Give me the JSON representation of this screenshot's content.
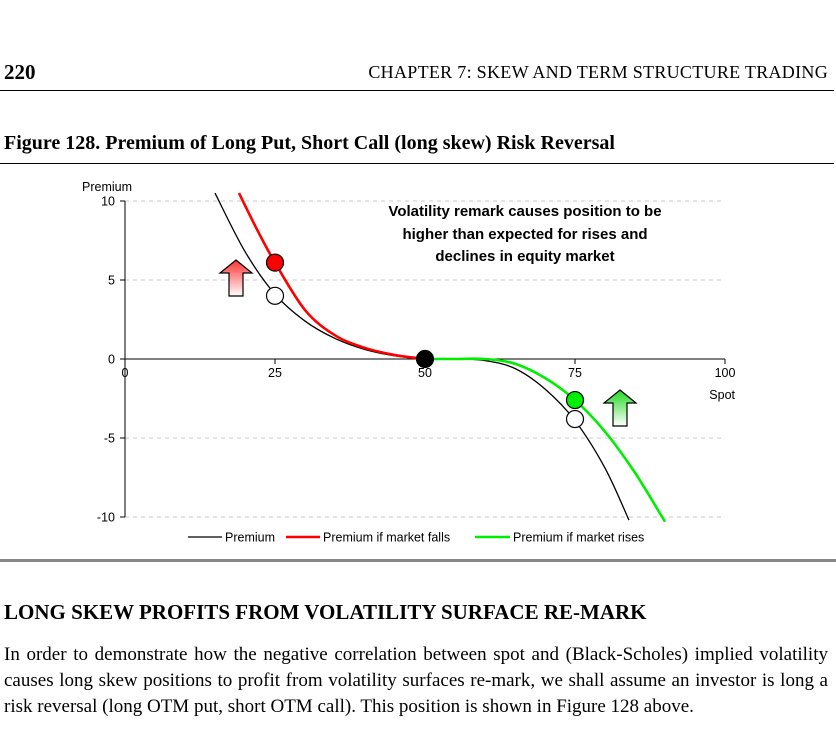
{
  "header": {
    "page_number": "220",
    "chapter_title": "CHAPTER 7: SKEW AND TERM STRUCTURE TRADING"
  },
  "figure": {
    "caption": "Figure 128. Premium of Long Put, Short Call (long skew) Risk Reversal"
  },
  "chart_data": {
    "type": "line",
    "title": "",
    "xlabel": "Spot",
    "ylabel": "Premium",
    "xlim": [
      0,
      100
    ],
    "ylim": [
      -10,
      10
    ],
    "x_ticks": [
      "0",
      "25",
      "50",
      "75",
      "100"
    ],
    "y_ticks": [
      "10",
      "5",
      "0",
      "-5",
      "-10"
    ],
    "grid": "dashed horizontal",
    "legend_position": "bottom",
    "annotation": {
      "lines": [
        "Volatility remark causes position to be",
        "higher than expected for rises and",
        "declines in equity market"
      ]
    },
    "series": [
      {
        "name": "Premium",
        "color": "#000000",
        "x": [
          15,
          20,
          25,
          30,
          35,
          40,
          45,
          50,
          55,
          60,
          65,
          70,
          75,
          80,
          84
        ],
        "y": [
          10.5,
          6.8,
          4.1,
          2.4,
          1.3,
          0.6,
          0.2,
          0.0,
          0.0,
          -0.1,
          -0.6,
          -1.9,
          -3.9,
          -6.9,
          -10.2
        ]
      },
      {
        "name": "Premium if market falls",
        "color": "#ff0000",
        "x": [
          19,
          22,
          25,
          30,
          35,
          40,
          45,
          50
        ],
        "y": [
          10.5,
          8.2,
          6.1,
          3.1,
          1.5,
          0.7,
          0.25,
          0.0
        ]
      },
      {
        "name": "Premium if market rises",
        "color": "#00ee00",
        "x": [
          50,
          55,
          60,
          65,
          70,
          75,
          80,
          85,
          90
        ],
        "y": [
          0.0,
          0.0,
          0.0,
          -0.3,
          -1.2,
          -2.6,
          -4.6,
          -7.2,
          -10.3
        ]
      }
    ],
    "markers": [
      {
        "x": 25,
        "y": 4.0,
        "fill": "none"
      },
      {
        "x": 25,
        "y": 6.1,
        "fill": "#ff0000"
      },
      {
        "x": 50,
        "y": 0.0,
        "fill": "#000000"
      },
      {
        "x": 75,
        "y": -3.8,
        "fill": "none"
      },
      {
        "x": 75,
        "y": -2.6,
        "fill": "#00ee00"
      }
    ],
    "arrows": [
      {
        "x": 18.5,
        "color": "#ff3030",
        "gradient_to": "#ffffff"
      },
      {
        "x": 82.5,
        "color": "#20d820",
        "gradient_to": "#ffffff"
      }
    ]
  },
  "section": {
    "heading": "LONG SKEW PROFITS FROM VOLATILITY SURFACE RE-MARK",
    "body": "In order to demonstrate how the negative correlation between spot and (Black-Scholes) implied volatility causes long skew positions to profit from volatility surfaces re-mark, we shall assume an investor is long a risk reversal (long OTM put, short OTM call). This position is shown in Figure 128 above."
  }
}
